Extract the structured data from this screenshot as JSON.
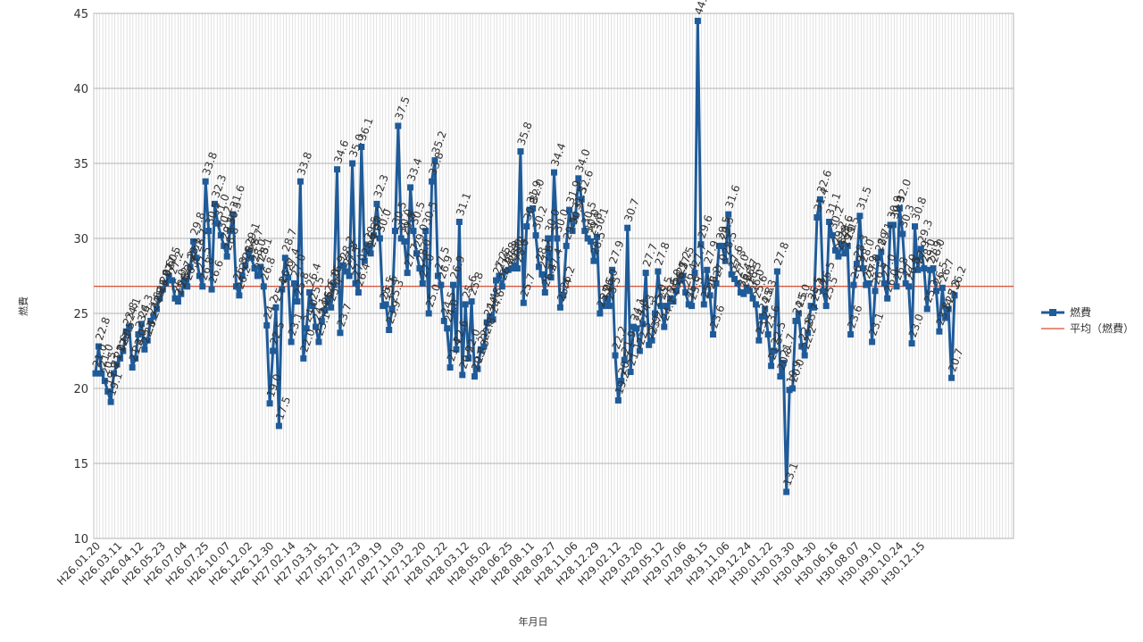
{
  "chart_data": {
    "type": "line",
    "title": "",
    "xlabel": "年月日",
    "ylabel": "燃費",
    "ylim": [
      10,
      45
    ],
    "y_ticks": [
      10,
      15,
      20,
      25,
      30,
      35,
      40,
      45
    ],
    "grid": true,
    "legend_position": "right",
    "colors": {
      "series": "#1f5b99",
      "average": "#cc2200",
      "grid": "#b3b3b3"
    },
    "x_tick_labels": [
      "H26.01.20",
      "H26.03.11",
      "H26.04.12",
      "H26.05.23",
      "H26.07.04",
      "H26.07.25",
      "H26.10.07",
      "H26.12.02",
      "H26.12.30",
      "H27.02.14",
      "H27.03.31",
      "H27.05.21",
      "H27.07.23",
      "H27.09.19",
      "H27.11.03",
      "H27.12.20",
      "H28.01.22",
      "H28.03.12",
      "H28.05.02",
      "H28.06.25",
      "H28.08.11",
      "H28.09.27",
      "H28.11.06",
      "H28.12.29",
      "H29.02.12",
      "H29.03.20",
      "H29.05.12",
      "H29.07.06",
      "H29.08.15",
      "H29.11.06",
      "H29.12.24",
      "H30.01.22",
      "H30.03.30",
      "H30.04.30",
      "H30.06.16",
      "H30.08.07",
      "H30.09.10",
      "H30.10.24",
      "H30.12.15"
    ],
    "series": [
      {
        "name": "燃費",
        "values": [
          21.0,
          22.8,
          21.0,
          20.5,
          19.8,
          19.1,
          21.0,
          21.6,
          22.0,
          22.5,
          23.8,
          24.1,
          21.4,
          22.0,
          23.6,
          24.3,
          22.6,
          23.2,
          24.5,
          24.8,
          25.3,
          26.0,
          26.6,
          27.0,
          27.5,
          27.2,
          26.0,
          25.8,
          26.3,
          27.2,
          26.8,
          28.1,
          29.8,
          28.7,
          27.5,
          26.8,
          33.8,
          30.5,
          26.6,
          32.3,
          31.0,
          30.2,
          29.5,
          28.8,
          30.5,
          31.6,
          26.8,
          26.2,
          27.5,
          28.2,
          29.1,
          28.7,
          28.0,
          27.5,
          28.1,
          26.8,
          24.2,
          19.0,
          22.5,
          25.4,
          17.5,
          26.6,
          28.7,
          27.4,
          23.1,
          27.0,
          25.8,
          33.8,
          22.0,
          24.0,
          26.4,
          25.5,
          24.1,
          23.1,
          24.5,
          25.2,
          26.0,
          25.4,
          26.9,
          34.6,
          23.7,
          28.2,
          27.8,
          27.5,
          35.0,
          27.0,
          26.4,
          36.1,
          28.5,
          29.5,
          29.0,
          30.2,
          32.3,
          30.0,
          25.5,
          25.6,
          23.9,
          25.3,
          30.5,
          37.5,
          30.0,
          29.8,
          27.7,
          33.4,
          30.5,
          29.0,
          28.0,
          27.0,
          30.5,
          25.0,
          33.8,
          35.2,
          27.5,
          26.9,
          24.5,
          24.0,
          21.4,
          26.9,
          22.6,
          31.1,
          20.9,
          25.6,
          22.0,
          25.8,
          20.8,
          21.3,
          22.6,
          22.8,
          24.4,
          24.8,
          24.6,
          27.2,
          27.5,
          26.8,
          27.8,
          27.9,
          28.0,
          28.2,
          28.0,
          35.8,
          25.7,
          30.8,
          31.9,
          32.0,
          30.2,
          28.1,
          27.6,
          26.4,
          30.0,
          27.4,
          34.4,
          30.0,
          25.4,
          26.2,
          29.5,
          31.9,
          30.5,
          31.5,
          34.0,
          32.6,
          30.5,
          30.0,
          29.8,
          28.5,
          30.1,
          25.0,
          25.5,
          26.0,
          25.5,
          27.9,
          22.2,
          19.2,
          20.5,
          21.9,
          30.7,
          21.1,
          24.1,
          24.0,
          22.5,
          24.3,
          27.7,
          22.9,
          23.2,
          25.0,
          27.8,
          25.5,
          24.1,
          25.5,
          26.0,
          25.8,
          26.5,
          27.2,
          27.5,
          26.4,
          25.6,
          25.5,
          27.7,
          44.5,
          29.6,
          25.6,
          27.9,
          26.2,
          23.6,
          27.0,
          29.5,
          29.5,
          28.5,
          31.6,
          27.6,
          27.3,
          27.0,
          26.4,
          26.3,
          26.7,
          26.5,
          26.0,
          25.6,
          23.2,
          24.8,
          25.3,
          23.6,
          21.5,
          22.5,
          27.8,
          20.8,
          21.7,
          13.1,
          19.9,
          20.0,
          24.5,
          25.0,
          22.8,
          22.2,
          23.7,
          25.5,
          25.4,
          31.4,
          32.6,
          26.5,
          25.5,
          31.1,
          30.2,
          29.2,
          28.8,
          29.6,
          29.0,
          29.5,
          23.6,
          26.9,
          28.3,
          31.5,
          28.0,
          26.9,
          27.0,
          23.1,
          26.5,
          28.7,
          29.1,
          27.0,
          26.0,
          30.9,
          30.9,
          26.8,
          32.0,
          30.3,
          27.0,
          26.8,
          23.0,
          30.8,
          27.9,
          29.3,
          28.0,
          25.3,
          27.9,
          28.0,
          26.5,
          23.8,
          26.7,
          24.7,
          25.3,
          20.7,
          26.2
        ]
      },
      {
        "name": "平均（燃費）",
        "value": 26.8
      }
    ]
  }
}
